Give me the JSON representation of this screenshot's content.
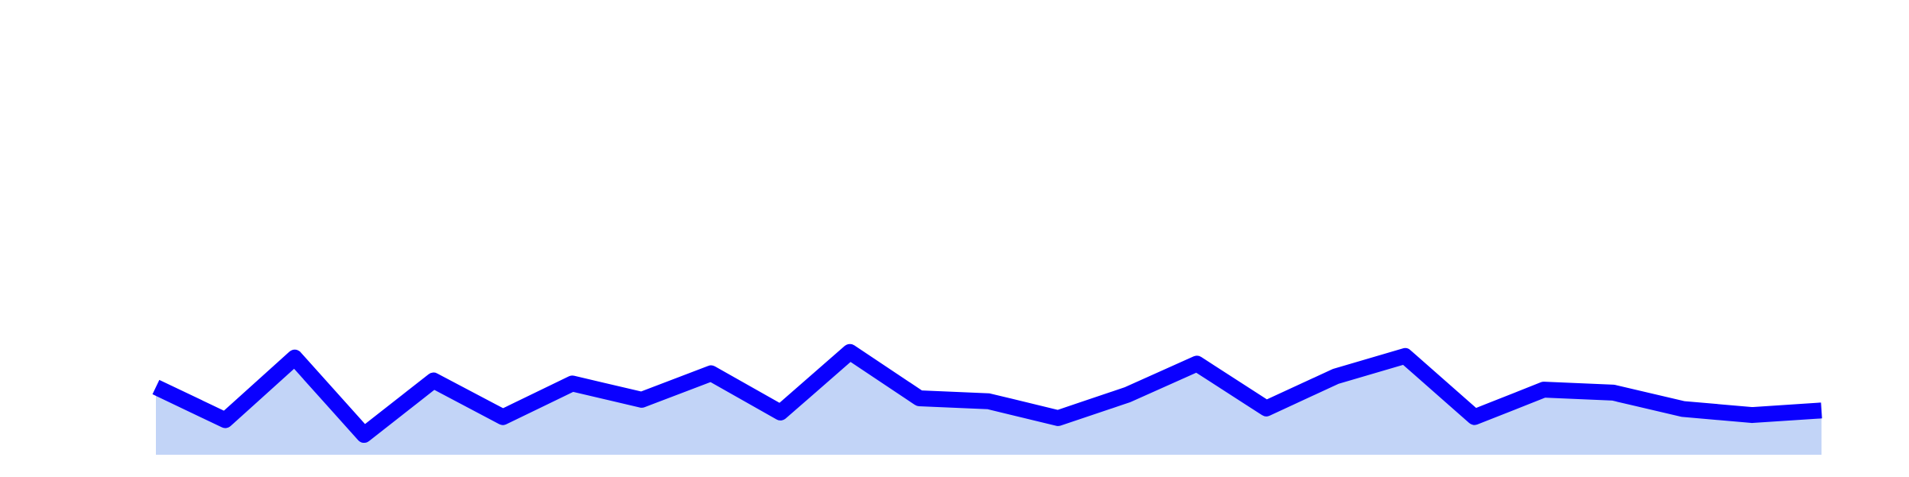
{
  "chart_data": {
    "type": "area",
    "x": [
      0,
      1,
      2,
      3,
      4,
      5,
      6,
      7,
      8,
      9,
      10,
      11,
      12,
      13,
      14,
      15,
      16,
      17,
      18,
      19,
      20,
      21,
      22,
      23,
      24
    ],
    "series": [
      {
        "values": [
          13.3,
          6.8,
          19.1,
          3.9,
          14.6,
          7.4,
          14.0,
          10.8,
          16.0,
          8.3,
          20.2,
          11.1,
          10.5,
          7.2,
          11.8,
          17.9,
          9.1,
          15.4,
          19.4,
          7.4,
          12.8,
          12.2,
          9.0,
          7.8,
          8.7
        ]
      }
    ],
    "ylim": [
      0,
      80
    ],
    "grid": false,
    "axes_visible": false,
    "colors": {
      "line": "#0a00ff",
      "fill": "#c2d4f7"
    }
  }
}
